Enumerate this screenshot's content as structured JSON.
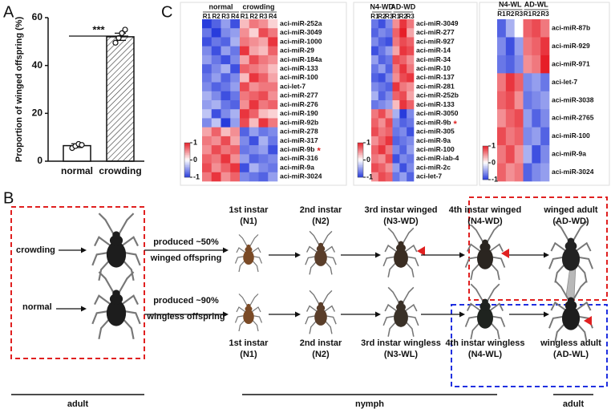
{
  "panel_labels": [
    "A",
    "B",
    "C"
  ],
  "chart_data": [
    {
      "type": "bar",
      "ylabel": "Proportion of winged offspring (%)",
      "categories": [
        "normal",
        "crowding"
      ],
      "values": [
        6.5,
        52
      ],
      "errors": [
        0.8,
        1.5
      ],
      "points": [
        [
          5.5,
          6.3,
          7.2,
          6.8
        ],
        [
          49.5,
          51.5,
          53.5,
          55
        ]
      ],
      "colors": [
        "#ffffff",
        "#ffffff"
      ],
      "hatch": [
        false,
        true
      ],
      "annotation": "***",
      "ylim": [
        0,
        60
      ],
      "yticks": [
        0,
        20,
        40,
        60
      ]
    },
    {
      "type": "heatmap",
      "column_groups": [
        {
          "name": "normal",
          "columns": [
            "R1",
            "R2",
            "R3",
            "R4"
          ]
        },
        {
          "name": "crowding",
          "columns": [
            "R1",
            "R2",
            "R3",
            "R4"
          ]
        }
      ],
      "rows": [
        "aci-miR-252a",
        "aci-miR-3049",
        "aci-miR-1000",
        "aci-miR-29",
        "aci-miR-184a",
        "aci-miR-133",
        "aci-miR-100",
        "aci-let-7",
        "aci-miR-277",
        "aci-miR-276",
        "aci-miR-190",
        "aci-miR-92b",
        "aci-miR-278",
        "aci-miR-317",
        "aci-miR-9b",
        "aci-miR-316",
        "aci-miR-9a",
        "aci-miR-3024"
      ],
      "row_marks": [
        {
          "row": 14,
          "text": "*"
        }
      ],
      "values": [
        [
          -1,
          -0.8,
          -0.5,
          -0.9,
          0.3,
          0.6,
          0.5,
          0.2
        ],
        [
          -0.7,
          -1,
          -0.6,
          -0.5,
          0.5,
          0.2,
          0.8,
          0.6
        ],
        [
          -0.9,
          -0.7,
          -0.8,
          -0.4,
          0.6,
          0.5,
          0.4,
          0.9
        ],
        [
          -0.6,
          -0.9,
          -0.5,
          -0.7,
          0.9,
          0.4,
          0.3,
          0.7
        ],
        [
          -0.5,
          -0.7,
          -0.9,
          -0.6,
          0.4,
          0.8,
          0.6,
          0.5
        ],
        [
          -0.8,
          -0.6,
          -0.4,
          -0.9,
          0.7,
          0.6,
          0.5,
          0.3
        ],
        [
          -0.7,
          -0.5,
          -0.8,
          -0.6,
          0.3,
          0.9,
          0.7,
          0.4
        ],
        [
          -0.6,
          -0.8,
          -0.7,
          -0.5,
          0.8,
          0.5,
          0.6,
          0.6
        ],
        [
          -0.4,
          -0.6,
          -0.9,
          -0.7,
          0.6,
          0.7,
          0.8,
          0.5
        ],
        [
          -0.5,
          -0.4,
          -0.7,
          -0.8,
          0.5,
          0.9,
          0.6,
          0.7
        ],
        [
          -0.3,
          -0.9,
          -0.6,
          -0.4,
          0.9,
          0.7,
          0.3,
          0.2
        ],
        [
          -0.6,
          -0.3,
          -1,
          -0.5,
          0.8,
          0.3,
          0.9,
          0.6
        ],
        [
          0.4,
          0.7,
          0.3,
          0.5,
          -0.8,
          -0.5,
          -0.7,
          -0.6
        ],
        [
          0.6,
          0.5,
          0.8,
          0.4,
          -0.6,
          -0.9,
          -0.4,
          -0.7
        ],
        [
          0.5,
          0.8,
          0.6,
          0.7,
          -0.7,
          -0.6,
          -0.5,
          -0.9
        ],
        [
          0.7,
          0.6,
          0.9,
          0.5,
          -0.5,
          -0.8,
          -0.7,
          -0.6
        ],
        [
          0.8,
          0.5,
          0.7,
          0.9,
          -0.9,
          -0.4,
          -0.6,
          -0.7
        ],
        [
          0.6,
          0.9,
          0.5,
          0.7,
          -0.6,
          -0.7,
          -0.8,
          -0.5
        ]
      ],
      "zlim": [
        -1,
        1
      ],
      "zticks": [
        1,
        0,
        -1
      ]
    },
    {
      "type": "heatmap",
      "column_groups": [
        {
          "name": "N4-WD",
          "columns": [
            "R1",
            "R2",
            "R3"
          ]
        },
        {
          "name": "AD-WD",
          "columns": [
            "R1",
            "R2",
            "R3"
          ]
        }
      ],
      "rows": [
        "aci-miR-3049",
        "aci-miR-277",
        "aci-miR-927",
        "aci-miR-14",
        "aci-miR-34",
        "aci-miR-10",
        "aci-miR-137",
        "aci-miR-281",
        "aci-miR-252b",
        "aci-miR-133",
        "aci-miR-3050",
        "aci-miR-9b",
        "aci-miR-305",
        "aci-miR-9a",
        "aci-miR-100",
        "aci-miR-iab-4",
        "aci-miR-2c",
        "aci-let-7"
      ],
      "row_marks": [
        {
          "row": 11,
          "text": "*"
        }
      ],
      "values": [
        [
          -0.7,
          -0.9,
          -0.6,
          0.5,
          0.9,
          0.6
        ],
        [
          -0.8,
          -0.6,
          -0.7,
          0.7,
          1,
          0.4
        ],
        [
          -0.6,
          -0.8,
          -0.9,
          0.6,
          0.8,
          0.7
        ],
        [
          -0.9,
          -0.7,
          -0.5,
          0.4,
          0.9,
          0.8
        ],
        [
          -0.5,
          -0.8,
          -0.7,
          0.8,
          0.7,
          0.5
        ],
        [
          -0.7,
          -0.5,
          -0.8,
          0.6,
          0.9,
          0.6
        ],
        [
          -0.8,
          -0.9,
          -0.6,
          0.5,
          0.8,
          0.9
        ],
        [
          -0.6,
          -0.7,
          -0.8,
          0.9,
          0.6,
          0.5
        ],
        [
          -0.4,
          -0.8,
          -0.6,
          0.7,
          0.8,
          0.4
        ],
        [
          -0.7,
          -0.6,
          -0.5,
          0.3,
          0.9,
          0.7
        ],
        [
          0.6,
          0.8,
          0.5,
          -0.4,
          -1,
          -0.6
        ],
        [
          0.7,
          0.5,
          0.8,
          -0.6,
          -0.8,
          -0.7
        ],
        [
          0.8,
          0.6,
          0.7,
          -0.7,
          -0.6,
          -0.9
        ],
        [
          0.5,
          0.7,
          0.9,
          -0.8,
          -0.7,
          -0.6
        ],
        [
          0.7,
          0.9,
          0.6,
          -0.6,
          -0.8,
          -0.5
        ],
        [
          0.6,
          0.5,
          0.8,
          -0.9,
          -0.6,
          -0.7
        ],
        [
          0.8,
          0.7,
          0.5,
          -0.5,
          -0.9,
          -0.6
        ],
        [
          0.5,
          0.8,
          0.7,
          -0.7,
          -0.5,
          -0.8
        ]
      ],
      "zlim": [
        -1,
        1
      ],
      "zticks": [
        1,
        0,
        -1
      ]
    },
    {
      "type": "heatmap",
      "column_groups": [
        {
          "name": "N4-WL",
          "columns": [
            "R1",
            "R2",
            "R3"
          ]
        },
        {
          "name": "AD-WL",
          "columns": [
            "R1",
            "R2",
            "R3"
          ]
        }
      ],
      "rows": [
        "aci-miR-87b",
        "aci-miR-929",
        "aci-miR-971",
        "aci-let-7",
        "aci-miR-3038",
        "aci-miR-2765",
        "aci-miR-100",
        "aci-miR-9a",
        "aci-miR-3024"
      ],
      "row_marks": [],
      "values": [
        [
          -0.8,
          -0.4,
          0,
          0.7,
          0.8,
          0.6
        ],
        [
          -0.6,
          -0.9,
          -0.5,
          0.6,
          0.7,
          0.9
        ],
        [
          -0.7,
          -0.8,
          -0.6,
          0.5,
          0.6,
          1
        ],
        [
          0.6,
          0.9,
          0.7,
          -0.6,
          -0.5,
          -0.7
        ],
        [
          0.7,
          0.8,
          0.5,
          -0.7,
          -0.6,
          -0.5
        ],
        [
          0.5,
          0.7,
          0.8,
          -0.5,
          -0.8,
          -0.6
        ],
        [
          0.8,
          0.6,
          0.7,
          -0.6,
          -0.5,
          -0.8
        ],
        [
          0.6,
          0.8,
          0.5,
          -0.4,
          -0.9,
          -0.6
        ],
        [
          0.7,
          0.5,
          0.6,
          -0.8,
          -0.6,
          -0.5
        ]
      ],
      "zlim": [
        -1,
        1
      ],
      "zticks": [
        1,
        0,
        -1
      ]
    }
  ],
  "panel_b": {
    "conditions": [
      {
        "name": "crowding",
        "produced": "produced ~50%",
        "offspring": "winged offspring"
      },
      {
        "name": "normal",
        "produced": "produced ~90%",
        "offspring": "wingless offspring"
      }
    ],
    "stages_top": [
      {
        "name": "1st instar",
        "code": "(N1)"
      },
      {
        "name": "2nd instar",
        "code": "(N2)"
      },
      {
        "name": "3rd instar winged",
        "code": "(N3-WD)"
      },
      {
        "name": "4th instar winged",
        "code": "(N4-WD)"
      },
      {
        "name": "winged adult",
        "code": "(AD-WD)"
      }
    ],
    "stages_bottom": [
      {
        "name": "1st instar",
        "code": "(N1)"
      },
      {
        "name": "2nd instar",
        "code": "(N2)"
      },
      {
        "name": "3rd instar wingless",
        "code": "(N3-WL)"
      },
      {
        "name": "4th instar wingless",
        "code": "(N4-WL)"
      },
      {
        "name": "wingless adult",
        "code": "(AD-WL)"
      }
    ],
    "phases": [
      "adult",
      "nymph",
      "adult"
    ]
  }
}
